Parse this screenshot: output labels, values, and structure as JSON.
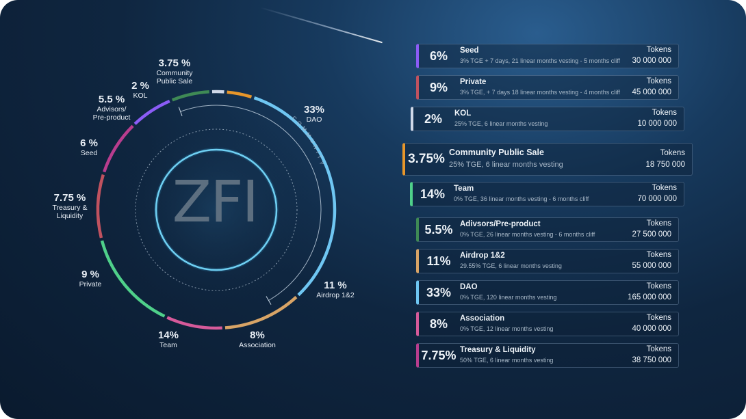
{
  "logo_text": "ZFI",
  "ring_caption": "COMMUNITY",
  "colors": {
    "seed": "#8b5cf6",
    "private": "#c0525f",
    "kol": "#cfd8e8",
    "community_public_sale": "#e7962a",
    "team": "#4fd08a",
    "advisors": "#3f8a55",
    "airdrop": "#d8a466",
    "dao": "#6fc6f2",
    "association": "#d65a9a",
    "treasury": "#b83d8e"
  },
  "donut_labels": [
    {
      "pct": "3.75 %",
      "name": "Community Public Sale"
    },
    {
      "pct": "2 %",
      "name": "KOL"
    },
    {
      "pct": "5.5 %",
      "name": "Advisors/ Pre-product"
    },
    {
      "pct": "6 %",
      "name": "Seed"
    },
    {
      "pct": "7.75 %",
      "name": "Treasury & Liquidity"
    },
    {
      "pct": "9 %",
      "name": "Private"
    },
    {
      "pct": "14%",
      "name": "Team"
    },
    {
      "pct": "8%",
      "name": "Association"
    },
    {
      "pct": "11 %",
      "name": "Airdrop 1&2"
    },
    {
      "pct": "33%",
      "name": "DAO"
    }
  ],
  "chart_data": {
    "type": "pie",
    "title": "",
    "categories": [
      "DAO",
      "Airdrop 1&2",
      "Association",
      "Team",
      "Private",
      "Treasury & Liquidity",
      "Seed",
      "Advisors/Pre-product",
      "KOL",
      "Community Public Sale"
    ],
    "values": [
      33,
      11,
      8,
      14,
      9,
      7.75,
      6,
      5.5,
      2,
      3.75
    ],
    "style": "donut"
  },
  "cards_label": "Tokens",
  "cards": [
    {
      "key": "seed",
      "pct": "6%",
      "title": "Seed",
      "vesting": "3% TGE + 7 days, 21 linear months vesting - 5 months cliff",
      "tokens": "30 000 000"
    },
    {
      "key": "private",
      "pct": "9%",
      "title": "Private",
      "vesting": "3% TGE, + 7 days 18 linear months vesting - 4 months cliff",
      "tokens": "45 000 000"
    },
    {
      "key": "kol",
      "pct": "2%",
      "title": "KOL",
      "vesting": "25% TGE, 6 linear months vesting",
      "tokens": "10 000 000"
    },
    {
      "key": "community_public_sale",
      "pct": "3.75%",
      "title": "Community Public Sale",
      "vesting": "25% TGE, 6 linear months vesting",
      "tokens": "18 750 000"
    },
    {
      "key": "team",
      "pct": "14%",
      "title": "Team",
      "vesting": "0% TGE, 36 linear months vesting - 6 months cliff",
      "tokens": "70 000 000"
    },
    {
      "key": "advisors",
      "pct": "5.5%",
      "title": "Adivsors/Pre-product",
      "vesting": "0% TGE, 26 linear months vesting - 6 months cliff",
      "tokens": "27 500 000"
    },
    {
      "key": "airdrop",
      "pct": "11%",
      "title": "Airdrop 1&2",
      "vesting": "29.55% TGE, 6 linear months vesting",
      "tokens": "55 000 000"
    },
    {
      "key": "dao",
      "pct": "33%",
      "title": "DAO",
      "vesting": "0% TGE, 120 linear months vesting",
      "tokens": "165 000 000"
    },
    {
      "key": "association",
      "pct": "8%",
      "title": "Association",
      "vesting": "0% TGE, 12 linear months vesting",
      "tokens": "40 000 000"
    },
    {
      "key": "treasury",
      "pct": "7.75%",
      "title": "Treasury & Liquidity",
      "vesting": "50% TGE, 6 linear months vesting",
      "tokens": "38 750 000"
    }
  ]
}
